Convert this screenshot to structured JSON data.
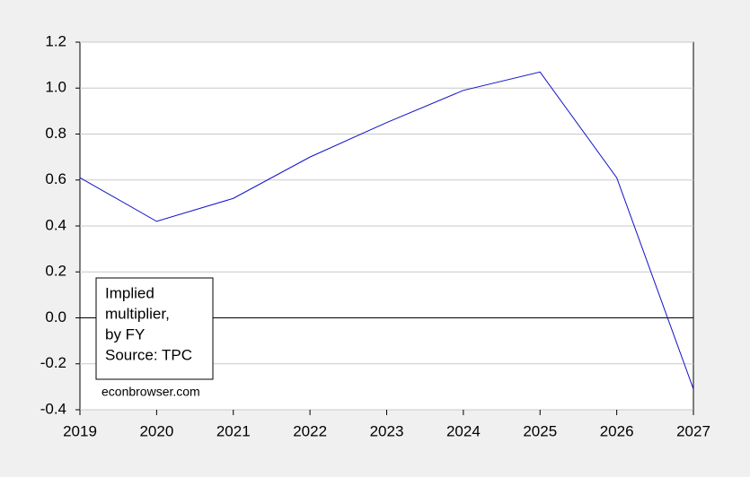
{
  "chart_data": {
    "type": "line",
    "x": [
      2019,
      2020,
      2021,
      2022,
      2023,
      2024,
      2025,
      2026,
      2027
    ],
    "series": [
      {
        "color": "#1010c8",
        "values": [
          0.61,
          0.42,
          0.52,
          0.7,
          0.85,
          0.99,
          1.07,
          0.61,
          -0.31
        ]
      }
    ],
    "xlim": [
      2019,
      2027
    ],
    "xticks": [
      2019,
      2020,
      2021,
      2022,
      2023,
      2024,
      2025,
      2026,
      2027
    ],
    "ylim": [
      -0.4,
      1.2
    ],
    "yticks": [
      -0.4,
      -0.2,
      {
        "value": 0,
        "label": "0.0"
      },
      0.2,
      0.4,
      0.6,
      0.8,
      {
        "value": 1,
        "label": "1.0"
      },
      1.2
    ],
    "grid": true,
    "zero_line": true,
    "annotation": [
      "Implied",
      "multiplier,",
      "by FY",
      "Source: TPC"
    ],
    "credit": "econbrowser.com"
  }
}
